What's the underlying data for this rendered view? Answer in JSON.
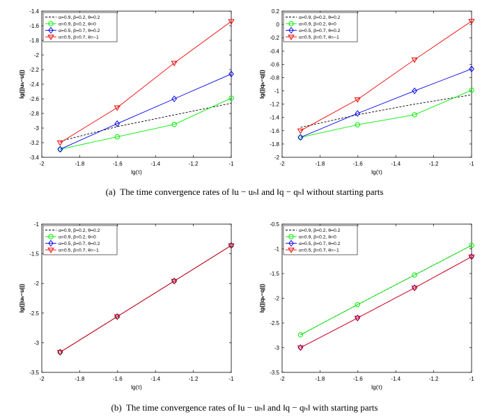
{
  "captions": {
    "a": "(a)  The time convergence rates of ‖u − uₕ‖ and ‖q − qₕ‖ without starting parts",
    "b": "(b)  The time convergence rates of ‖u − uₕ‖ and ‖q − qₕ‖ with starting parts"
  },
  "chart_data": [
    {
      "id": "a-u",
      "type": "line",
      "xlabel": "lg(τ)",
      "ylabel": "lg(||uₕ−u||)",
      "xlim": [
        -2,
        -1
      ],
      "ylim": [
        -3.4,
        -1.4
      ],
      "xticks": [
        "-2",
        "-1.8",
        "-1.6",
        "-1.4",
        "-1.2",
        "-1"
      ],
      "yticks": [
        "-3.4",
        "-3.2",
        "-3",
        "-2.8",
        "-2.6",
        "-2.4",
        "-2.2",
        "-2",
        "-1.8",
        "-1.6",
        "-1.4"
      ],
      "x": [
        -1.903,
        -1.602,
        -1.301,
        -1.0
      ],
      "legend": "top-left",
      "series": [
        {
          "name": "α=0.9, β=0.2, θ=0.2",
          "color": "#000000",
          "style": "dashed",
          "marker": "none",
          "values": [
            -3.18,
            -2.98,
            -2.82,
            -2.66
          ]
        },
        {
          "name": "α=0.9, β=0.2, θ=0",
          "color": "#00ee00",
          "style": "solid",
          "marker": "circle",
          "values": [
            -3.29,
            -3.12,
            -2.95,
            -2.59
          ]
        },
        {
          "name": "α=0.5, β=0.7, θ=0.2",
          "color": "#0000ee",
          "style": "solid",
          "marker": "diamond",
          "values": [
            -3.29,
            -2.94,
            -2.6,
            -2.26
          ]
        },
        {
          "name": "α=0.5, β=0.7, θ=−1",
          "color": "#ee0000",
          "style": "solid",
          "marker": "triangle-down",
          "values": [
            -3.2,
            -2.72,
            -2.11,
            -1.54
          ]
        }
      ]
    },
    {
      "id": "a-q",
      "type": "line",
      "xlabel": "lg(τ)",
      "ylabel": "lg(||qₕ−q||)",
      "xlim": [
        -2,
        -1
      ],
      "ylim": [
        -2,
        0.2
      ],
      "xticks": [
        "-2",
        "-1.8",
        "-1.6",
        "-1.4",
        "-1.2",
        "-1"
      ],
      "yticks": [
        "-2",
        "-1.8",
        "-1.6",
        "-1.4",
        "-1.2",
        "-1",
        "-0.8",
        "-0.6",
        "-0.4",
        "-0.2",
        "0",
        "0.2"
      ],
      "x": [
        -1.903,
        -1.602,
        -1.301,
        -1.0
      ],
      "legend": "top-left",
      "series": [
        {
          "name": "α=0.9, β=0.2, θ=0.2",
          "color": "#000000",
          "style": "dashed",
          "marker": "none",
          "values": [
            -1.55,
            -1.36,
            -1.2,
            -1.06
          ]
        },
        {
          "name": "α=0.9, β=0.2, θ=0",
          "color": "#00ee00",
          "style": "solid",
          "marker": "circle",
          "values": [
            -1.7,
            -1.51,
            -1.36,
            -0.99
          ]
        },
        {
          "name": "α=0.5, β=0.7, θ=0.2",
          "color": "#0000ee",
          "style": "solid",
          "marker": "diamond",
          "values": [
            -1.7,
            -1.34,
            -1.0,
            -0.67
          ]
        },
        {
          "name": "α=0.5, β=0.7, θ=−1",
          "color": "#ee0000",
          "style": "solid",
          "marker": "triangle-down",
          "values": [
            -1.6,
            -1.13,
            -0.53,
            0.05
          ]
        }
      ]
    },
    {
      "id": "b-u",
      "type": "line",
      "xlabel": "lg(τ)",
      "ylabel": "lg(||uₕ−u||)",
      "xlim": [
        -2,
        -1
      ],
      "ylim": [
        -3.5,
        -1
      ],
      "xticks": [
        "-2",
        "-1.8",
        "-1.6",
        "-1.4",
        "-1.2",
        "-1"
      ],
      "yticks": [
        "-3.5",
        "-3",
        "-2.5",
        "-2",
        "-1.5",
        "-1"
      ],
      "x": [
        -1.903,
        -1.602,
        -1.301,
        -1.0
      ],
      "legend": "top-left",
      "series": [
        {
          "name": "α=0.9, β=0.2, θ=0.2",
          "color": "#000000",
          "style": "dashed",
          "marker": "none",
          "values": [
            -3.16,
            -2.56,
            -1.96,
            -1.36
          ]
        },
        {
          "name": "α=0.9, β=0.2, θ=0",
          "color": "#00ee00",
          "style": "solid",
          "marker": "circle",
          "values": [
            -3.16,
            -2.56,
            -1.96,
            -1.36
          ]
        },
        {
          "name": "α=0.5, β=0.7, θ=0.2",
          "color": "#0000ee",
          "style": "solid",
          "marker": "diamond",
          "values": [
            -3.16,
            -2.56,
            -1.96,
            -1.36
          ]
        },
        {
          "name": "α=0.5, β=0.7, θ=−1",
          "color": "#ee0000",
          "style": "solid",
          "marker": "triangle-down",
          "values": [
            -3.16,
            -2.56,
            -1.96,
            -1.36
          ]
        }
      ]
    },
    {
      "id": "b-q",
      "type": "line",
      "xlabel": "lg(τ)",
      "ylabel": "lg(||qₕ−q||)",
      "xlim": [
        -2,
        -1
      ],
      "ylim": [
        -3.5,
        -0.5
      ],
      "xticks": [
        "-2",
        "-1.8",
        "-1.6",
        "-1.4",
        "-1.2",
        "-1"
      ],
      "yticks": [
        "-3.5",
        "-3",
        "-2.5",
        "-2",
        "-1.5",
        "-1",
        "-0.5"
      ],
      "x": [
        -1.903,
        -1.602,
        -1.301,
        -1.0
      ],
      "legend": "top-left",
      "series": [
        {
          "name": "α=0.9, β=0.2, θ=0.2",
          "color": "#000000",
          "style": "dashed",
          "marker": "none",
          "values": [
            -2.74,
            -2.13,
            -1.53,
            -0.93
          ]
        },
        {
          "name": "α=0.9, β=0.2, θ=0",
          "color": "#00ee00",
          "style": "solid",
          "marker": "circle",
          "values": [
            -2.74,
            -2.13,
            -1.53,
            -0.93
          ]
        },
        {
          "name": "α=0.5, β=0.7, θ=0.2",
          "color": "#0000ee",
          "style": "solid",
          "marker": "diamond",
          "values": [
            -3.0,
            -2.4,
            -1.79,
            -1.16
          ]
        },
        {
          "name": "α=0.5, β=0.7, θ=−1",
          "color": "#ee0000",
          "style": "solid",
          "marker": "triangle-down",
          "values": [
            -3.0,
            -2.4,
            -1.79,
            -1.16
          ]
        }
      ]
    }
  ]
}
